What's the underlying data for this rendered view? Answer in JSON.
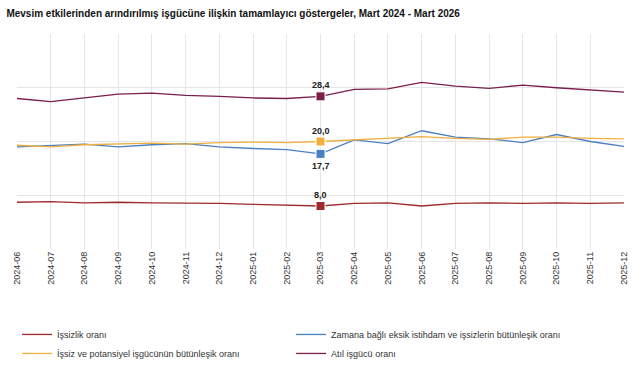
{
  "chart_data": {
    "type": "line",
    "title": "Mevsim etkilerinden arındırılmış işgücüne ilişkin tamamlayıcı göstergeler, Mart 2024 - Mart 2026",
    "categories": [
      "2024-06",
      "2024-07",
      "2024-08",
      "2024-09",
      "2024-10",
      "2024-11",
      "2024-12",
      "2025-01",
      "2025-02",
      "2025-03",
      "2025-04",
      "2025-05",
      "2025-06",
      "2025-07",
      "2025-08",
      "2025-09",
      "2025-10",
      "2025-11",
      "2025-12"
    ],
    "series": [
      {
        "name": "İşsizlik oranı",
        "color": "#9e2a2b",
        "values": [
          8.7,
          8.8,
          8.6,
          8.7,
          8.6,
          8.6,
          8.5,
          8.3,
          8.2,
          8.0,
          8.5,
          8.6,
          8.0,
          8.5,
          8.6,
          8.5,
          8.6,
          8.5,
          8.6
        ]
      },
      {
        "name": "Zamana bağlı eksik istihdam ve işsizlerin bütünleşik oranı",
        "color": "#4a7fc1",
        "values": [
          19.0,
          19.2,
          19.5,
          19.0,
          19.4,
          19.6,
          19.0,
          18.7,
          18.5,
          17.7,
          20.3,
          19.6,
          22.0,
          20.8,
          20.5,
          19.8,
          21.3,
          20.0,
          19.1
        ]
      },
      {
        "name": "İşsiz ve potansiyel işgücünün bütünleşik oranı",
        "color": "#f0b040",
        "values": [
          19.3,
          19.0,
          19.4,
          19.6,
          19.7,
          19.5,
          19.8,
          19.9,
          19.8,
          20.0,
          20.3,
          20.5,
          20.9,
          20.6,
          20.4,
          20.8,
          20.8,
          20.6,
          20.5
        ]
      },
      {
        "name": "Atıl işgücü oranı",
        "color": "#7a1f4b",
        "values": [
          28.0,
          27.4,
          28.1,
          28.8,
          29.0,
          28.6,
          28.4,
          28.1,
          28.0,
          28.4,
          29.7,
          29.8,
          31.0,
          30.3,
          29.9,
          30.5,
          30.0,
          29.6,
          29.2
        ]
      }
    ],
    "annotations": [
      {
        "x": "2025-03",
        "y": 28.4,
        "text": "28,4",
        "color": "#7a1f4b"
      },
      {
        "x": "2025-03",
        "y": 20.0,
        "text": "20,0",
        "color": "#f0b040"
      },
      {
        "x": "2025-03",
        "y": 17.7,
        "text": "17,7",
        "color": "#4a7fc1"
      },
      {
        "x": "2025-03",
        "y": 8.0,
        "text": "8,0",
        "color": "#9e2a2b"
      }
    ],
    "ylim": [
      0,
      40
    ],
    "yticks": [
      0,
      10,
      20,
      30,
      40
    ],
    "grid": true,
    "tick_labels": "x",
    "legend": "bottom",
    "marker": "square"
  }
}
